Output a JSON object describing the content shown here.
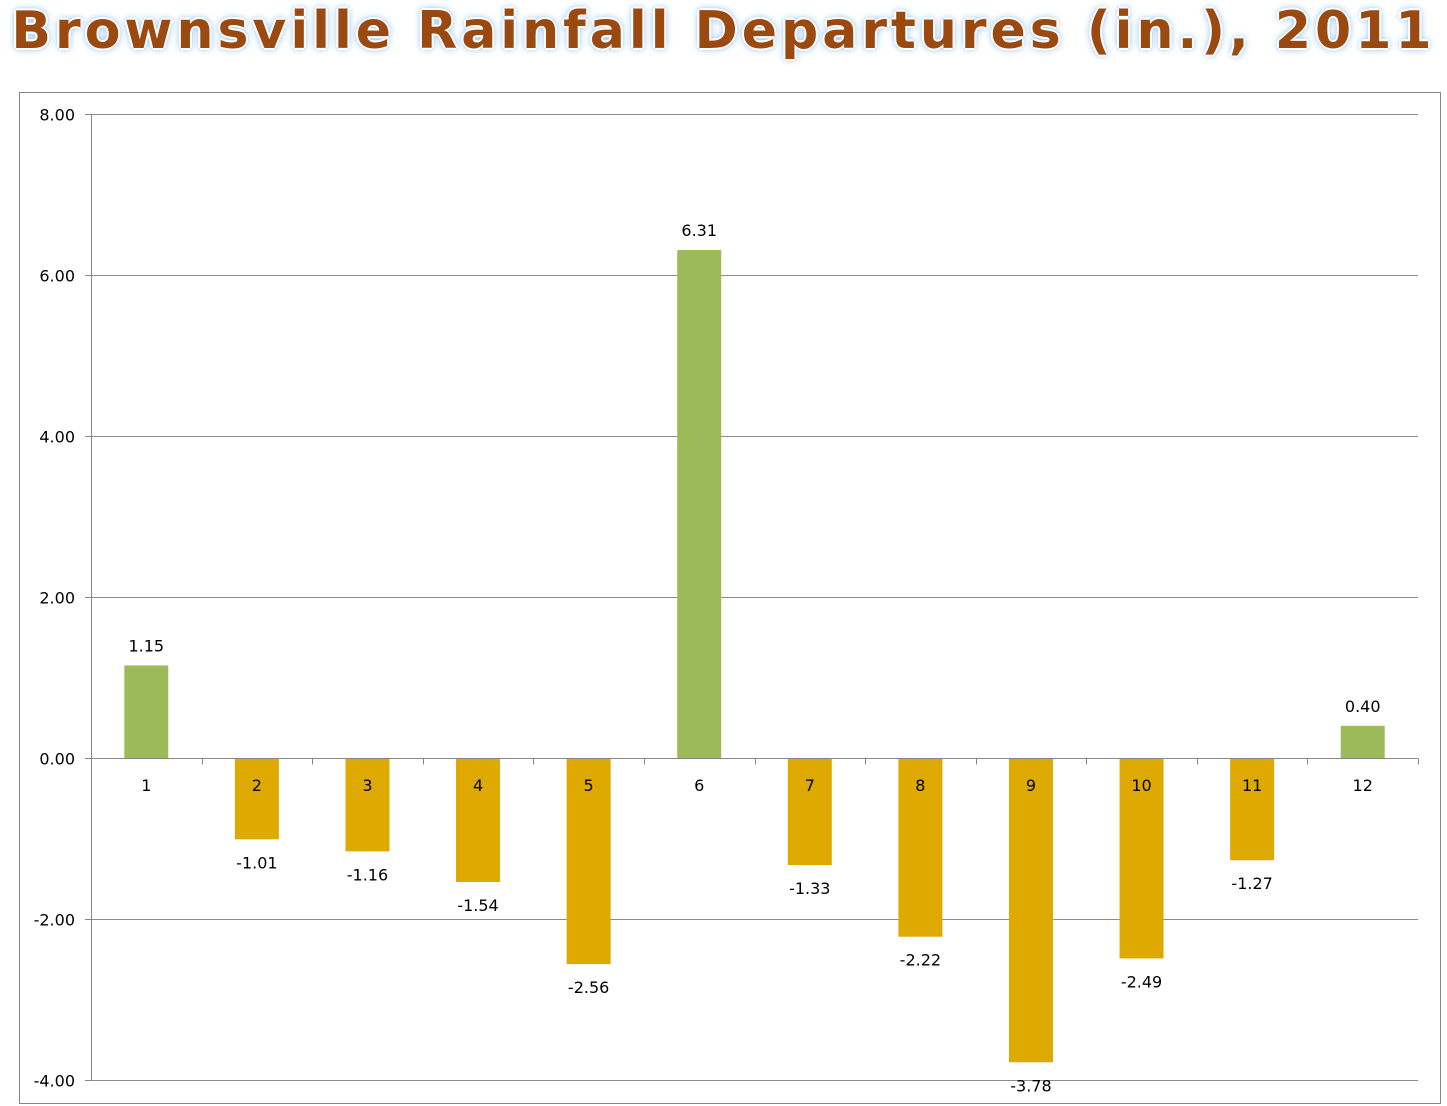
{
  "title": "Brownsville Rainfall Departures (in.), 2011",
  "colors": {
    "positive_bar": "#9bbb59",
    "negative_bar": "#dea900",
    "title_text": "#9a4a10",
    "gridline": "#8c8c8c",
    "axis": "#868686"
  },
  "chart_data": {
    "type": "bar",
    "title": "Brownsville Rainfall Departures (in.), 2011",
    "xlabel": "",
    "ylabel": "",
    "categories": [
      "1",
      "2",
      "3",
      "4",
      "5",
      "6",
      "7",
      "8",
      "9",
      "10",
      "11",
      "12"
    ],
    "values": [
      1.15,
      -1.01,
      -1.16,
      -1.54,
      -2.56,
      6.31,
      -1.33,
      -2.22,
      -3.78,
      -2.49,
      -1.27,
      0.4
    ],
    "value_labels": [
      "1.15",
      "-1.01",
      "-1.16",
      "-1.54",
      "-2.56",
      "6.31",
      "-1.33",
      "-2.22",
      "-3.78",
      "-2.49",
      "-1.27",
      "0.40"
    ],
    "ylim": [
      -4,
      8
    ],
    "yticks": [
      8,
      6,
      4,
      2,
      0,
      -2,
      -4
    ],
    "ytick_labels": [
      "8.00",
      "6.00",
      "4.00",
      "2.00",
      "0.00",
      "-2.00",
      "-4.00"
    ],
    "grid": true,
    "legend": "none"
  }
}
